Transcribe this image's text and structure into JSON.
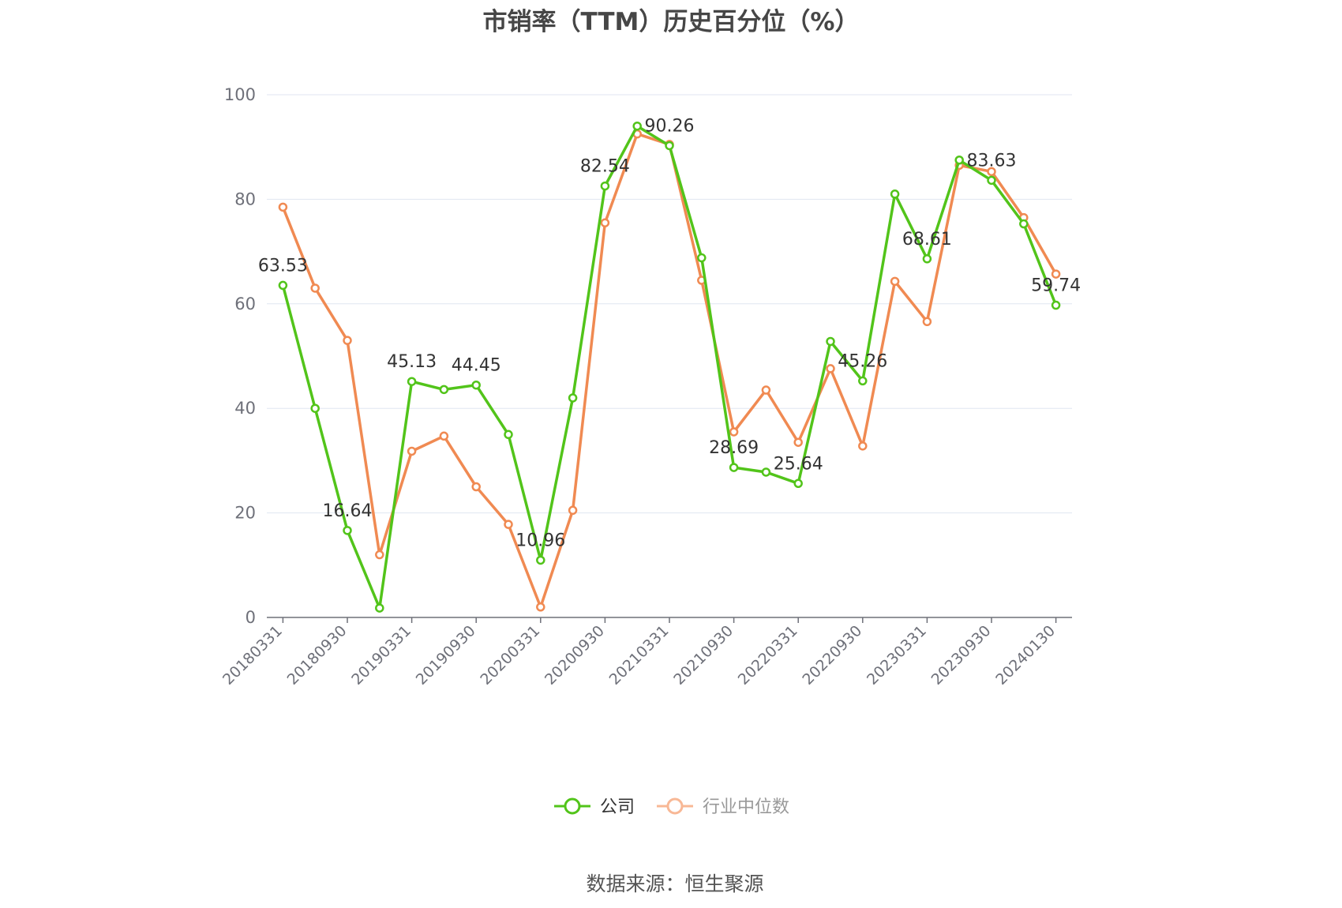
{
  "chart_data": {
    "type": "line",
    "title": "市销率（TTM）历史百分位（%）",
    "source": "数据来源：恒生聚源",
    "ylim": [
      0,
      100
    ],
    "yticks": [
      "0",
      "20",
      "40",
      "60",
      "80",
      "100"
    ],
    "xticks": [
      "20180331",
      "20180930",
      "20190331",
      "20190930",
      "20200331",
      "20200930",
      "20210331",
      "20210930",
      "20220331",
      "20220930",
      "20230331",
      "20230930",
      "20240130"
    ],
    "x": [
      "20180331",
      "20180630",
      "20180930",
      "20181231",
      "20190331",
      "20190630",
      "20190930",
      "20191231",
      "20200331",
      "20200630",
      "20200930",
      "20201231",
      "20210331",
      "20210630",
      "20210930",
      "20211231",
      "20220331",
      "20220630",
      "20220930",
      "20221231",
      "20230331",
      "20230630",
      "20230930",
      "20231231",
      "20240130"
    ],
    "series": [
      {
        "name": "公司",
        "color": "#52c41a",
        "values": [
          63.53,
          40.0,
          16.64,
          1.8,
          45.13,
          43.6,
          44.45,
          35.0,
          10.96,
          42.0,
          82.54,
          94.0,
          90.26,
          68.8,
          28.69,
          27.8,
          25.64,
          52.8,
          45.26,
          81.0,
          68.61,
          87.5,
          83.63,
          75.3,
          59.74
        ],
        "labels": [
          "63.53",
          "",
          "16.64",
          "",
          "45.13",
          "",
          "44.45",
          "",
          "10.96",
          "",
          "82.54",
          "",
          "90.26",
          "",
          "28.69",
          "",
          "25.64",
          "",
          "45.26",
          "",
          "68.61",
          "",
          "83.63",
          "",
          "59.74"
        ]
      },
      {
        "name": "行业中位数",
        "color": "#f08a52",
        "values": [
          78.5,
          63.0,
          53.0,
          12.0,
          31.8,
          34.7,
          25.0,
          17.8,
          2.0,
          20.5,
          75.5,
          92.5,
          90.5,
          64.5,
          35.5,
          43.5,
          33.5,
          47.6,
          32.8,
          64.3,
          56.6,
          86.5,
          85.3,
          76.5,
          65.7
        ]
      }
    ],
    "legend": {
      "position": "bottom"
    },
    "grid": true
  }
}
